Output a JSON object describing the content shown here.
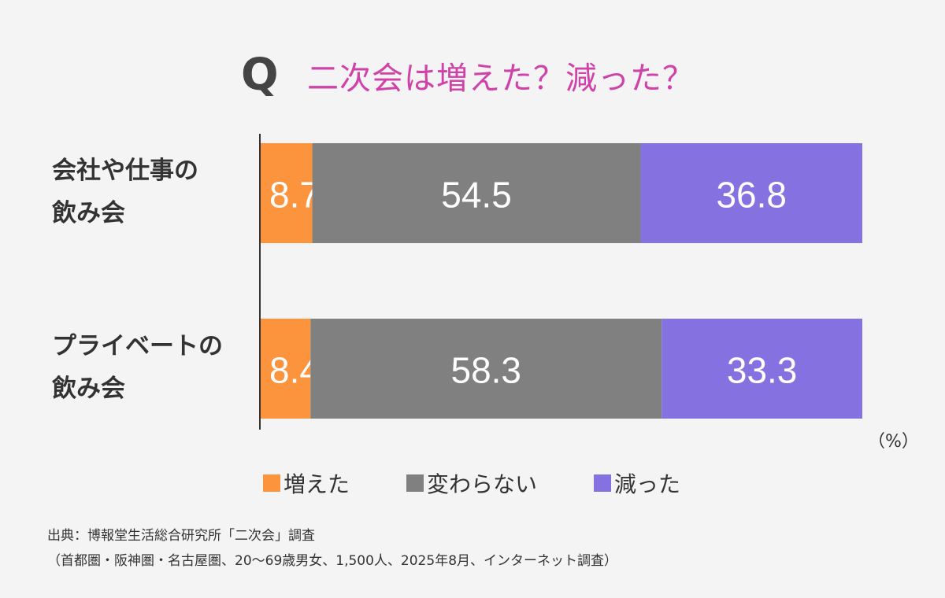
{
  "title": {
    "q_mark": "Q",
    "question": "二次会は増えた？減った？"
  },
  "rows": [
    {
      "label_line1": "会社や仕事の",
      "label_line2": "飲み会"
    },
    {
      "label_line1": "プライベートの",
      "label_line2": "飲み会"
    }
  ],
  "unit": "（%）",
  "legend": [
    {
      "label": "増えた",
      "color": "#fc943e"
    },
    {
      "label": "変わらない",
      "color": "#808080"
    },
    {
      "label": "減った",
      "color": "#8572e0"
    }
  ],
  "source": {
    "line1": "出典：博報堂生活総合研究所「二次会」調査",
    "line2": "（首都圏・阪神圏・名古屋圏、20～69歳男女、1,500人、2025年8月、インターネット調査）"
  },
  "chart_data": {
    "type": "bar",
    "orientation": "horizontal",
    "stacked": true,
    "categories": [
      "会社や仕事の飲み会",
      "プライベートの飲み会"
    ],
    "series": [
      {
        "name": "増えた",
        "values": [
          8.7,
          8.4
        ],
        "color": "#fc943e"
      },
      {
        "name": "変わらない",
        "values": [
          54.5,
          58.3
        ],
        "color": "#808080"
      },
      {
        "name": "減った",
        "values": [
          36.8,
          33.3
        ],
        "color": "#8572e0"
      }
    ],
    "xlim": [
      0,
      100
    ],
    "unit": "%",
    "grid": false,
    "legend_position": "bottom"
  }
}
